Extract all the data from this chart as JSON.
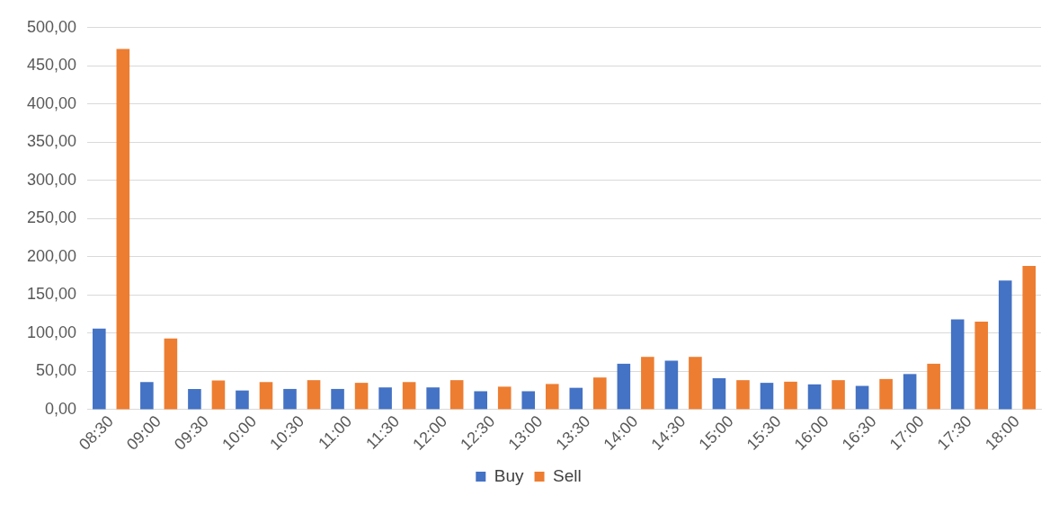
{
  "chart_data": {
    "type": "bar",
    "categories": [
      "08:30",
      "09:00",
      "09:30",
      "10:00",
      "10:30",
      "11:00",
      "11:30",
      "12:00",
      "12:30",
      "13:00",
      "13:30",
      "14:00",
      "14:30",
      "15:00",
      "15:30",
      "16:00",
      "16:30",
      "17:00",
      "17:30",
      "18:00"
    ],
    "series": [
      {
        "name": "Buy",
        "color": "#4472c4",
        "values": [
          106,
          36,
          27,
          25,
          27,
          27,
          29,
          29,
          24,
          24,
          28.5,
          60,
          64,
          41,
          35,
          33,
          31,
          46.5,
          118,
          169
        ]
      },
      {
        "name": "Sell",
        "color": "#ed7d31",
        "values": [
          472,
          93,
          38,
          36,
          38.5,
          35,
          36,
          38.5,
          30,
          33.5,
          42,
          69,
          69,
          38.5,
          36.5,
          38.5,
          40,
          60,
          115,
          188
        ]
      }
    ],
    "ylim": [
      0,
      500
    ],
    "yticks": [
      {
        "value": 0,
        "label": "0,00"
      },
      {
        "value": 50,
        "label": "50,00"
      },
      {
        "value": 100,
        "label": "100,00"
      },
      {
        "value": 150,
        "label": "150,00"
      },
      {
        "value": 200,
        "label": "200,00"
      },
      {
        "value": 250,
        "label": "250,00"
      },
      {
        "value": 300,
        "label": "300,00"
      },
      {
        "value": 350,
        "label": "350,00"
      },
      {
        "value": 400,
        "label": "400,00"
      },
      {
        "value": 450,
        "label": "450,00"
      },
      {
        "value": 500,
        "label": "500,00"
      }
    ],
    "grid": "y",
    "legend": "bottom"
  }
}
